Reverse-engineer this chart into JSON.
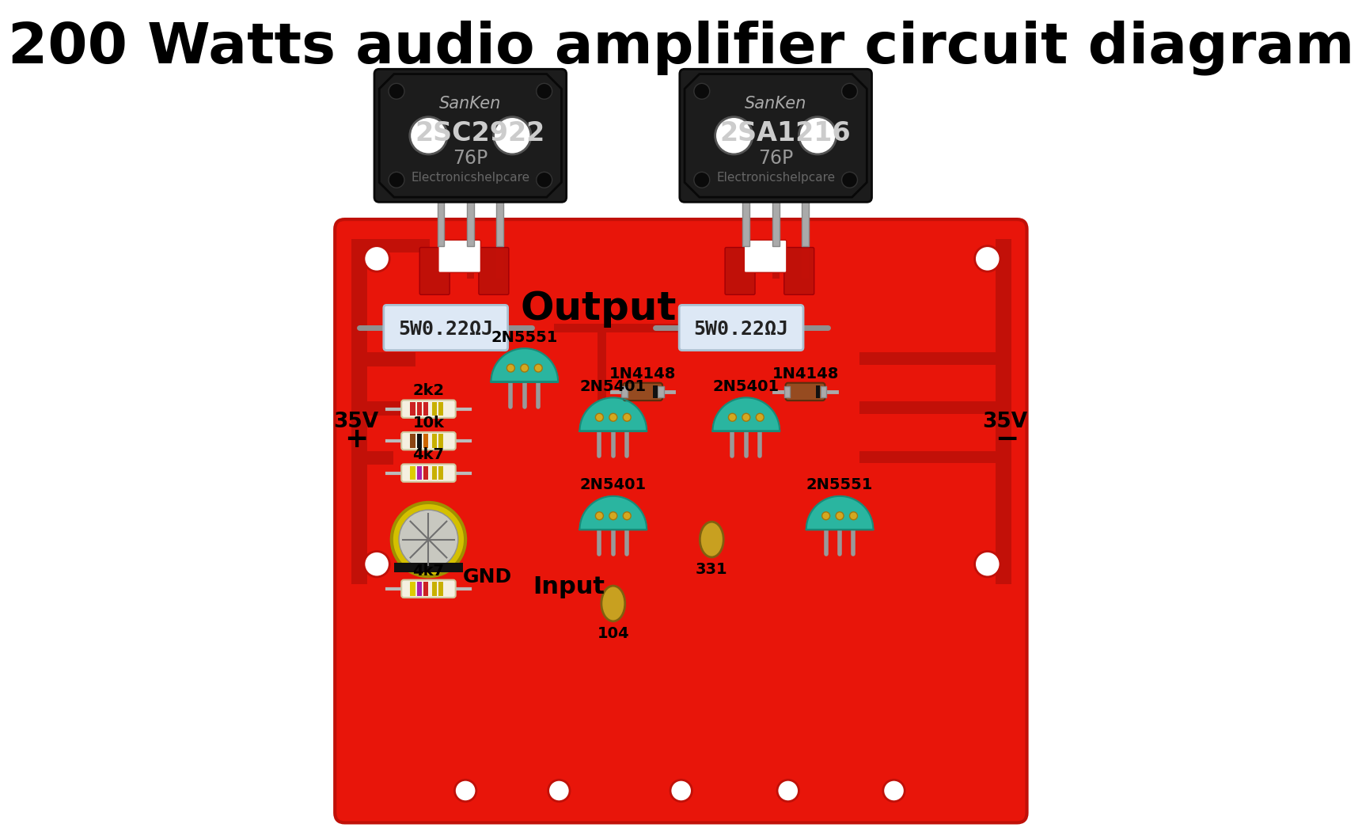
{
  "title": "200 Watts audio amplifier circuit diagram",
  "bg_color": "#ffffff",
  "board_color": "#e8150a",
  "transistor1_label": "2SC2922",
  "transistor2_label": "2SA1216",
  "transistor_brand": "SanKen",
  "transistor_code": "76P",
  "transistor_watermark": "Electronicshelpcare",
  "resistor1_label": "5W0.22ΩJ",
  "resistor2_label": "5W0.22ΩJ",
  "output_label": "Output",
  "input_label": "Input",
  "gnd_label": "GND",
  "r1_label": "2k2",
  "r2_label": "10k",
  "r3_label": "4k7",
  "r4_label": "4k7",
  "t1_label": "2N5551",
  "t2_label": "2N5401",
  "t3_label": "2N5401",
  "t4_label": "2N5401",
  "t5_label": "2N5551",
  "d1_label": "1N4148",
  "d2_label": "1N4148",
  "cap_label": "331",
  "cap2_label": "104"
}
